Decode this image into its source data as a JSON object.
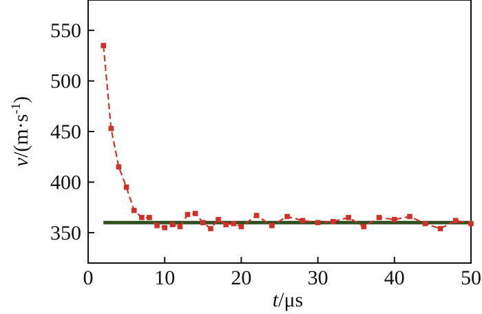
{
  "chart_data": {
    "type": "line",
    "xlabel_var": "t",
    "xlabel_unit": "/μs",
    "ylabel_var": "v",
    "ylabel_unit_a": "/(m·s",
    "ylabel_sup": "-1",
    "ylabel_unit_b": ")",
    "xlim": [
      0,
      50
    ],
    "ylim": [
      320,
      580
    ],
    "xticks": [
      0,
      10,
      20,
      30,
      40,
      50
    ],
    "yticks": [
      350,
      400,
      450,
      500,
      550
    ],
    "grid": false,
    "series": [
      {
        "style": "dashed-line-with-square-markers",
        "color": "#d0302a",
        "x": [
          2,
          3,
          4,
          5,
          6,
          7,
          8,
          9,
          10,
          11,
          12,
          13,
          14,
          15,
          16,
          17,
          18,
          19,
          20,
          22,
          24,
          26,
          28,
          30,
          32,
          34,
          36,
          38,
          40,
          42,
          44,
          46,
          48,
          50
        ],
        "y": [
          535,
          453,
          415,
          395,
          372,
          365,
          365,
          357,
          355,
          358,
          356,
          368,
          369,
          360,
          354,
          363,
          358,
          359,
          356,
          367,
          357,
          366,
          362,
          360,
          361,
          365,
          356,
          365,
          363,
          366,
          359,
          354,
          362,
          359
        ]
      },
      {
        "style": "solid-reference-line",
        "color": "#2f4f1f",
        "x": [
          2,
          50
        ],
        "y": [
          360,
          360
        ]
      }
    ]
  }
}
